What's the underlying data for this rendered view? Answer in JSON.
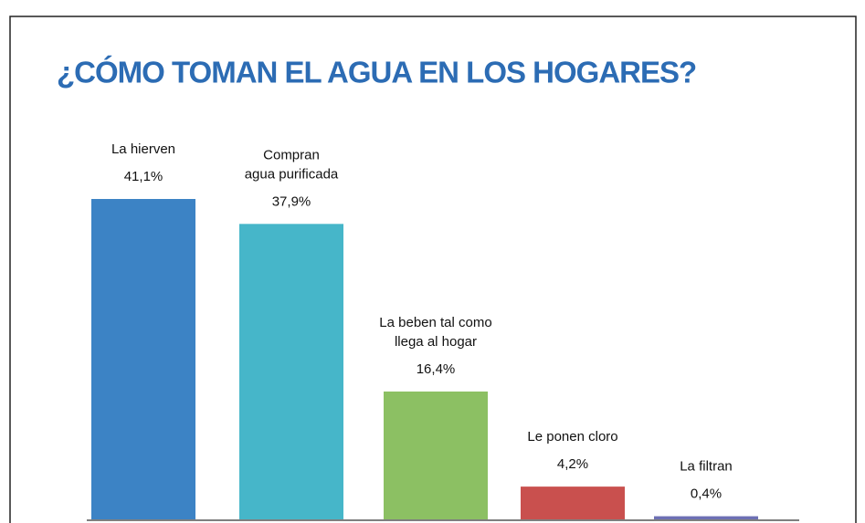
{
  "chart_data": {
    "type": "bar",
    "title": "¿CÓMO TOMAN EL AGUA EN LOS HOGARES?",
    "categories": [
      [
        "La hierven"
      ],
      [
        "Compran",
        "agua purificada"
      ],
      [
        "La beben tal como",
        "llega al hogar"
      ],
      [
        "Le ponen cloro"
      ],
      [
        "La filtran"
      ]
    ],
    "values": [
      41.1,
      37.9,
      16.4,
      4.2,
      0.4
    ],
    "value_labels": [
      "41,1%",
      "37,9%",
      "16,4%",
      "4,2%",
      "0,4%"
    ],
    "colors": [
      "#3c83c5",
      "#46b6c9",
      "#8cc063",
      "#c9504e",
      "#6d70b4"
    ]
  }
}
